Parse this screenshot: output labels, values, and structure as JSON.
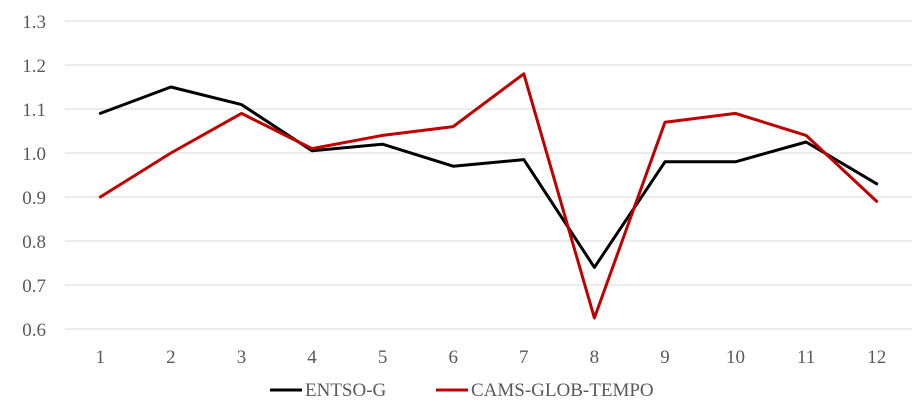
{
  "chart_data": {
    "type": "line",
    "title": "",
    "xlabel": "",
    "ylabel": "",
    "x": [
      1,
      2,
      3,
      4,
      5,
      6,
      7,
      8,
      9,
      10,
      11,
      12
    ],
    "x_tick_labels": [
      "1",
      "2",
      "3",
      "4",
      "5",
      "6",
      "7",
      "8",
      "9",
      "10",
      "11",
      "12"
    ],
    "ylim": [
      0.6,
      1.3
    ],
    "y_ticks": [
      0.6,
      0.7,
      0.8,
      0.9,
      1.0,
      1.1,
      1.2,
      1.3
    ],
    "y_tick_labels": [
      "0.6",
      "0.7",
      "0.8",
      "0.9",
      "1.0",
      "1.1",
      "1.2",
      "1.3"
    ],
    "grid": "horizontal",
    "legend_position": "bottom",
    "series": [
      {
        "name": "ENTSO-G",
        "color": "#000000",
        "values": [
          1.09,
          1.15,
          1.11,
          1.005,
          1.02,
          0.97,
          0.985,
          0.74,
          0.98,
          0.98,
          1.025,
          0.93
        ]
      },
      {
        "name": "CAMS-GLOB-TEMPO",
        "color": "#c00000",
        "values": [
          0.9,
          1.0,
          1.09,
          1.01,
          1.04,
          1.06,
          1.18,
          0.625,
          1.07,
          1.09,
          1.04,
          0.89
        ]
      }
    ]
  }
}
